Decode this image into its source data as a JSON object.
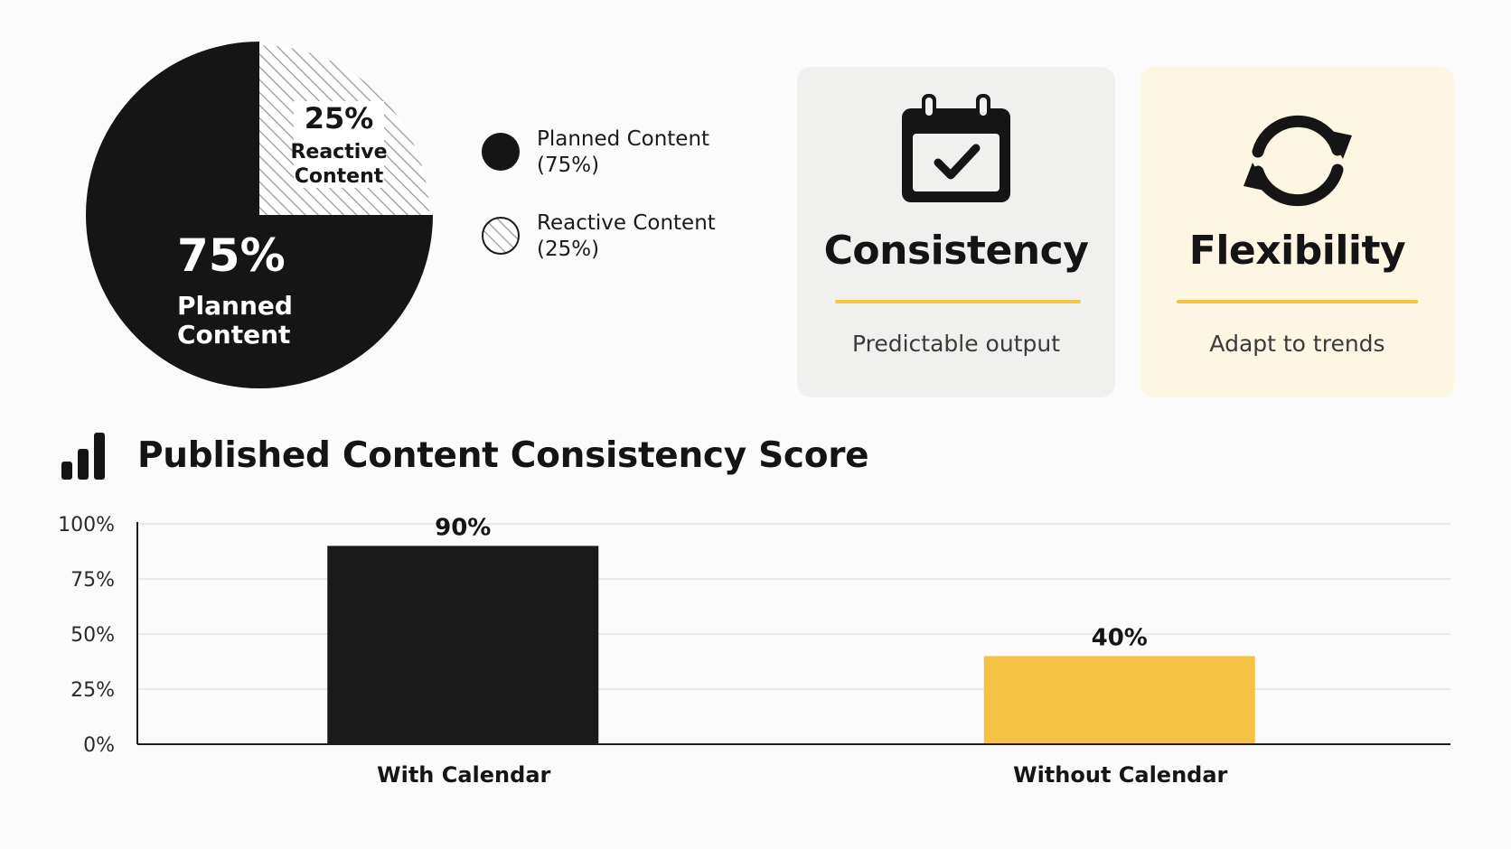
{
  "pie": {
    "chart_data": {
      "type": "pie",
      "slices": [
        {
          "name": "Planned Content",
          "value": 75,
          "label_pct": "75%",
          "label_line1": "Planned",
          "label_line2": "Content",
          "color": "#151515",
          "pattern": "solid"
        },
        {
          "name": "Reactive Content",
          "value": 25,
          "label_pct": "25%",
          "label_line1": "Reactive",
          "label_line2": "Content",
          "color": "#ffffff",
          "pattern": "hatched"
        }
      ]
    }
  },
  "legend": {
    "items": [
      {
        "line1": "Planned Content",
        "line2": "(75%)",
        "style": "solid"
      },
      {
        "line1": "Reactive Content",
        "line2": "(25%)",
        "style": "hatched"
      }
    ]
  },
  "cards": [
    {
      "title": "Consistency",
      "subtitle": "Predictable output",
      "icon": "calendar-check-icon",
      "background": "#f0f0ef"
    },
    {
      "title": "Flexibility",
      "subtitle": "Adapt to trends",
      "icon": "refresh-icon",
      "background": "#fcf6e3"
    }
  ],
  "bar_section": {
    "title": "Published Content Consistency Score",
    "icon": "bar-chart-icon"
  },
  "chart_data": {
    "type": "bar",
    "title": "Published Content Consistency Score",
    "categories": [
      "With Calendar",
      "Without Calendar"
    ],
    "values": [
      90,
      40
    ],
    "value_labels": [
      "90%",
      "40%"
    ],
    "colors": [
      "#1a1a1a",
      "#f4c245"
    ],
    "ylim": [
      0,
      100
    ],
    "yticks": [
      0,
      25,
      50,
      75,
      100
    ],
    "ytick_labels": [
      "0%",
      "25%",
      "50%",
      "75%",
      "100%"
    ],
    "xlabel": "",
    "ylabel": "",
    "grid": true
  },
  "colors": {
    "accent_yellow": "#f3c443",
    "dark": "#151515"
  }
}
